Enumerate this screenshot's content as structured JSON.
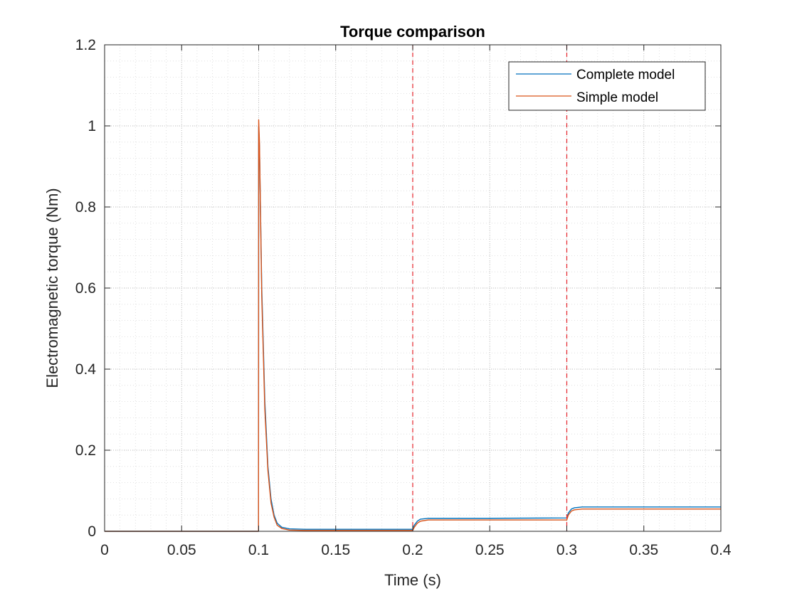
{
  "chart_data": {
    "type": "line",
    "title": "Torque comparison",
    "xlabel": "Time (s)",
    "ylabel": "Electromagnetic torque (Nm)",
    "xlim": [
      0,
      0.4
    ],
    "ylim": [
      0,
      1.2
    ],
    "xticks": [
      0,
      0.05,
      0.1,
      0.15,
      0.2,
      0.25,
      0.3,
      0.35,
      0.4
    ],
    "xtick_labels": [
      "0",
      "0.05",
      "0.1",
      "0.15",
      "0.2",
      "0.25",
      "0.3",
      "0.35",
      "0.4"
    ],
    "yticks": [
      0,
      0.2,
      0.4,
      0.6,
      0.8,
      1.0,
      1.2
    ],
    "ytick_labels": [
      "0",
      "0.2",
      "0.4",
      "0.6",
      "0.8",
      "1",
      "1.2"
    ],
    "grid": true,
    "minor_grid": true,
    "legend_position": "top-right",
    "vertical_markers": [
      {
        "x": 0.2,
        "color": "#e6242b",
        "style": "dashed"
      },
      {
        "x": 0.3,
        "color": "#e6242b",
        "style": "dashed"
      }
    ],
    "series": [
      {
        "name": "Complete model",
        "color": "#0072bd",
        "x": [
          0,
          0.0999,
          0.1,
          0.1005,
          0.102,
          0.104,
          0.106,
          0.108,
          0.11,
          0.112,
          0.115,
          0.12,
          0.13,
          0.15,
          0.2,
          0.201,
          0.203,
          0.205,
          0.21,
          0.25,
          0.3,
          0.301,
          0.303,
          0.305,
          0.31,
          0.35,
          0.4
        ],
        "y": [
          0,
          0,
          1.0,
          0.95,
          0.6,
          0.32,
          0.16,
          0.08,
          0.04,
          0.02,
          0.01,
          0.006,
          0.005,
          0.005,
          0.005,
          0.015,
          0.025,
          0.03,
          0.032,
          0.032,
          0.033,
          0.045,
          0.055,
          0.058,
          0.06,
          0.06,
          0.06
        ]
      },
      {
        "name": "Simple model",
        "color": "#d95319",
        "x": [
          0,
          0.0999,
          0.1,
          0.1005,
          0.102,
          0.104,
          0.106,
          0.108,
          0.11,
          0.112,
          0.115,
          0.12,
          0.13,
          0.15,
          0.2,
          0.201,
          0.203,
          0.205,
          0.21,
          0.25,
          0.3,
          0.301,
          0.303,
          0.305,
          0.31,
          0.35,
          0.4
        ],
        "y": [
          0,
          0,
          1.015,
          0.96,
          0.58,
          0.3,
          0.15,
          0.07,
          0.035,
          0.015,
          0.007,
          0.003,
          0.002,
          0.002,
          0.002,
          0.01,
          0.02,
          0.025,
          0.028,
          0.028,
          0.028,
          0.04,
          0.05,
          0.053,
          0.055,
          0.055,
          0.055
        ]
      }
    ]
  }
}
